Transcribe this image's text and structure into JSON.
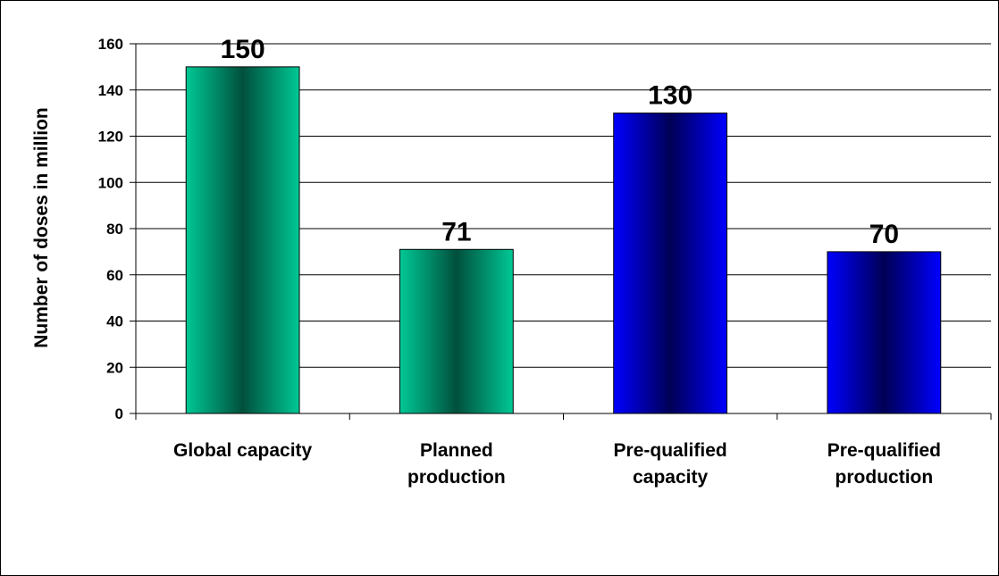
{
  "chart_data": {
    "type": "bar",
    "title": "",
    "xlabel": "",
    "ylabel": "Number of doses in million",
    "ylim": [
      0,
      160
    ],
    "yticks": [
      0,
      20,
      40,
      60,
      80,
      100,
      120,
      140,
      160
    ],
    "grid": true,
    "legend": "none",
    "categories": [
      [
        "Global capacity"
      ],
      [
        "Planned",
        "production"
      ],
      [
        "Pre-qualified",
        "capacity"
      ],
      [
        "Pre-qualified",
        "production"
      ]
    ],
    "values": [
      150,
      71,
      130,
      70
    ],
    "data_labels": [
      "150",
      "71",
      "130",
      "70"
    ],
    "colors": [
      "#00c896",
      "#00c896",
      "#0000ff",
      "#0000ff"
    ],
    "colors_dark": [
      "#00503c",
      "#00503c",
      "#000055",
      "#000055"
    ]
  }
}
